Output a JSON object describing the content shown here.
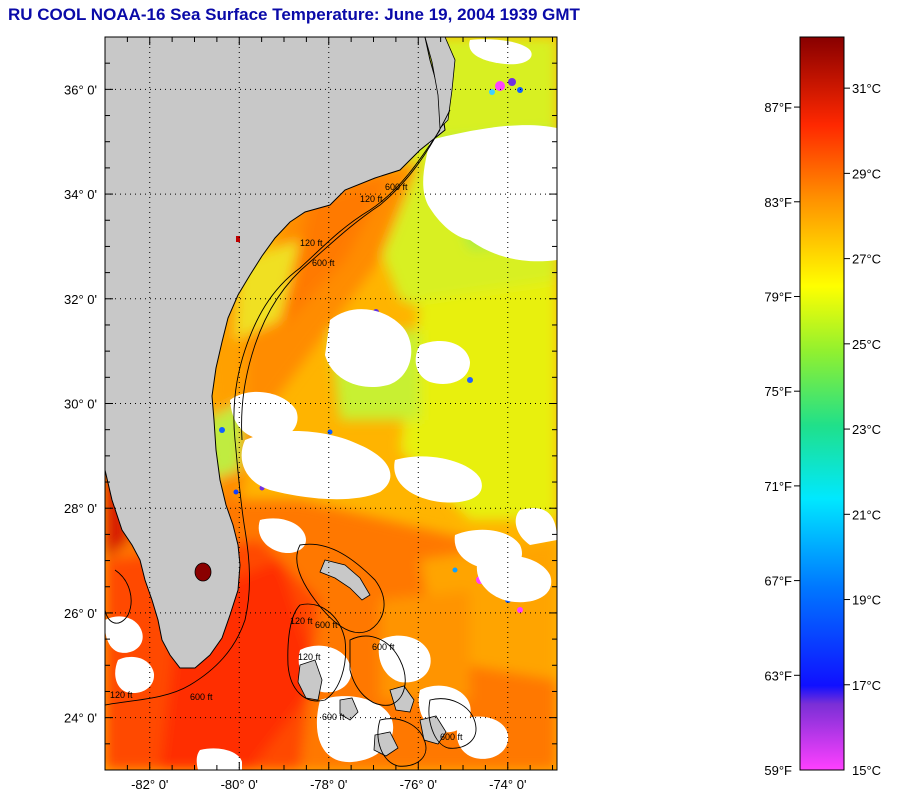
{
  "title": "RU COOL  NOAA-16  Sea Surface Temperature:  June 19, 2004 1939 GMT",
  "map": {
    "lon_range": [
      -83.0,
      -72.9
    ],
    "lat_range": [
      23.0,
      37.0
    ],
    "lat_ticks": [
      {
        "value": 36,
        "label": "36° 0'"
      },
      {
        "value": 34,
        "label": "34° 0'"
      },
      {
        "value": 32,
        "label": "32° 0'"
      },
      {
        "value": 30,
        "label": "30° 0'"
      },
      {
        "value": 28,
        "label": "28° 0'"
      },
      {
        "value": 26,
        "label": "26° 0'"
      },
      {
        "value": 24,
        "label": "24° 0'"
      }
    ],
    "lon_ticks": [
      {
        "value": -82,
        "label": "-82° 0'"
      },
      {
        "value": -80,
        "label": "-80° 0'"
      },
      {
        "value": -78,
        "label": "-78° 0'"
      },
      {
        "value": -76,
        "label": "-76° 0'"
      },
      {
        "value": -74,
        "label": "-74° 0'"
      }
    ],
    "isobath_labels": [
      "120 ft",
      "600 ft",
      "120 ft",
      "600 ft",
      "120 ft",
      "600 ft",
      "120 ft",
      "600 ft",
      "120 ft",
      "600 ft",
      "600 ft",
      "600 ft"
    ]
  },
  "colorbar": {
    "f_labels": [
      "87°F",
      "83°F",
      "79°F",
      "75°F",
      "71°F",
      "67°F",
      "63°F",
      "59°F"
    ],
    "f_values": [
      87,
      83,
      79,
      75,
      71,
      67,
      63,
      59
    ],
    "c_labels": [
      "31°C",
      "29°C",
      "27°C",
      "25°C",
      "23°C",
      "21°C",
      "19°C",
      "17°C",
      "15°C"
    ],
    "c_values": [
      31,
      29,
      27,
      25,
      23,
      21,
      19,
      17,
      15
    ],
    "range_c": [
      15,
      32.2
    ],
    "stops": [
      {
        "frac": 0.0,
        "color": "#ff40ff"
      },
      {
        "frac": 0.09,
        "color": "#7a2fd6"
      },
      {
        "frac": 0.115,
        "color": "#1010ff"
      },
      {
        "frac": 0.25,
        "color": "#0078ff"
      },
      {
        "frac": 0.37,
        "color": "#00e8ff"
      },
      {
        "frac": 0.47,
        "color": "#20e08a"
      },
      {
        "frac": 0.57,
        "color": "#90f030"
      },
      {
        "frac": 0.66,
        "color": "#ffff00"
      },
      {
        "frac": 0.78,
        "color": "#ff9000"
      },
      {
        "frac": 0.88,
        "color": "#ff2800"
      },
      {
        "frac": 1.0,
        "color": "#880000"
      }
    ]
  },
  "colors": {
    "land": "#c8c8c8",
    "cloud": "#ffffff",
    "coast": "#000000",
    "title": "#0a0aa8"
  }
}
